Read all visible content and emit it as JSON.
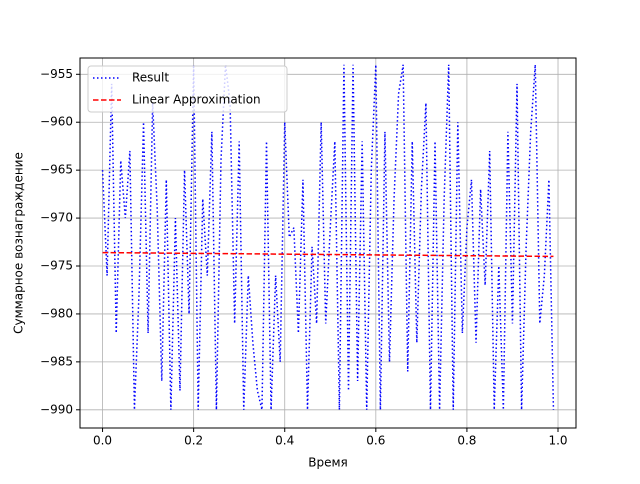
{
  "chart_data": {
    "type": "line",
    "xlabel": "Время",
    "ylabel": "Суммарное вознаграждение",
    "xlim": [
      -0.0495,
      1.0395
    ],
    "ylim": [
      -991.9,
      -953.3
    ],
    "xticks": [
      {
        "value": 0,
        "label": "0.0"
      },
      0.2,
      0.4,
      0.6,
      0.8,
      {
        "value": 1,
        "label": "1.0"
      }
    ],
    "yticks": [
      {
        "value": -990,
        "label": "−990"
      },
      {
        "value": -985,
        "label": "−985"
      },
      {
        "value": -980,
        "label": "−980"
      },
      {
        "value": -975,
        "label": "−975"
      },
      {
        "value": -970,
        "label": "−970"
      },
      {
        "value": -965,
        "label": "−965"
      },
      {
        "value": -960,
        "label": "−960"
      },
      {
        "value": -955,
        "label": "−955"
      }
    ],
    "grid": true,
    "legend": "upper left",
    "series": [
      {
        "name": "Result",
        "color": "#0000ff",
        "linestyle": "dotted",
        "x": [
          0,
          0.01,
          0.02,
          0.03,
          0.04,
          0.05,
          0.06,
          0.07,
          0.08,
          0.09,
          0.1,
          0.11,
          0.12,
          0.13,
          0.14,
          0.15,
          0.16,
          0.17,
          0.18,
          0.19,
          0.2,
          0.21,
          0.22,
          0.23,
          0.24,
          0.25,
          0.26,
          0.27,
          0.28,
          0.29,
          0.3,
          0.31,
          0.32,
          0.33,
          0.34,
          0.35,
          0.36,
          0.37,
          0.38,
          0.39,
          0.4,
          0.41,
          0.42,
          0.43,
          0.44,
          0.45,
          0.46,
          0.47,
          0.48,
          0.49,
          0.5,
          0.51,
          0.52,
          0.53,
          0.54,
          0.55,
          0.56,
          0.57,
          0.58,
          0.59,
          0.6,
          0.61,
          0.62,
          0.63,
          0.64,
          0.65,
          0.66,
          0.67,
          0.68,
          0.69,
          0.7,
          0.71,
          0.72,
          0.73,
          0.74,
          0.75,
          0.76,
          0.77,
          0.78,
          0.79,
          0.8,
          0.81,
          0.82,
          0.83,
          0.84,
          0.85,
          0.86,
          0.87,
          0.88,
          0.89,
          0.9,
          0.91,
          0.92,
          0.93,
          0.94,
          0.95,
          0.96,
          0.97,
          0.98,
          0.99
        ],
        "values": [
          -965,
          -976,
          -956,
          -982,
          -964,
          -970,
          -963,
          -990,
          -978,
          -960,
          -982,
          -958,
          -969,
          -987,
          -966,
          -990,
          -970,
          -988,
          -965,
          -980,
          -954,
          -990,
          -968,
          -976,
          -961,
          -990,
          -964,
          -954,
          -958,
          -981,
          -962,
          -990,
          -976,
          -983,
          -988,
          -990,
          -962,
          -990,
          -976,
          -985,
          -960,
          -972,
          -971,
          -982,
          -966,
          -990,
          -973,
          -981,
          -960,
          -981,
          -971,
          -962,
          -990,
          -954,
          -988,
          -954,
          -987,
          -962,
          -990,
          -965,
          -954,
          -990,
          -961,
          -985,
          -968,
          -957,
          -954,
          -986,
          -962,
          -983,
          -967,
          -958,
          -990,
          -962,
          -990,
          -968,
          -954,
          -990,
          -960,
          -982,
          -971,
          -966,
          -983,
          -967,
          -977,
          -963,
          -990,
          -975,
          -990,
          -961,
          -981,
          -956,
          -990,
          -973,
          -961,
          -954,
          -981,
          -976,
          -966,
          -990
        ]
      },
      {
        "name": "Linear Approximation",
        "color": "#ff0000",
        "linestyle": "dashed",
        "x": [
          0,
          0.99
        ],
        "values": [
          -973.6,
          -974.0
        ]
      }
    ]
  }
}
